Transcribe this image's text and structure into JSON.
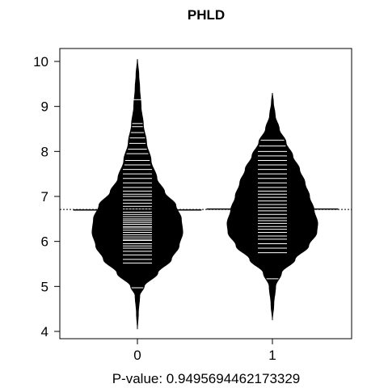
{
  "chart_data": {
    "type": "beanplot",
    "title": "PHLD",
    "xlabel": "P-value: 0.9495694462173329",
    "ylabel": "",
    "categories": [
      "0",
      "1"
    ],
    "ylim": [
      3.9,
      10.2
    ],
    "yticks": [
      4,
      5,
      6,
      7,
      8,
      9,
      10
    ],
    "overall_mean_line": 6.71,
    "series": [
      {
        "category": "0",
        "group_mean": 6.7,
        "range": [
          4.05,
          10.05
        ],
        "density_profile": [
          [
            4.05,
            0.0
          ],
          [
            4.4,
            0.02
          ],
          [
            4.8,
            0.05
          ],
          [
            5.0,
            0.15
          ],
          [
            5.3,
            0.45
          ],
          [
            5.6,
            0.75
          ],
          [
            5.9,
            0.92
          ],
          [
            6.2,
            1.0
          ],
          [
            6.5,
            0.97
          ],
          [
            6.8,
            0.85
          ],
          [
            7.1,
            0.6
          ],
          [
            7.4,
            0.43
          ],
          [
            7.8,
            0.3
          ],
          [
            8.2,
            0.2
          ],
          [
            8.6,
            0.13
          ],
          [
            9.0,
            0.08
          ],
          [
            9.4,
            0.05
          ],
          [
            9.7,
            0.03
          ],
          [
            10.05,
            0.0
          ]
        ],
        "observations": [
          4.97,
          5.52,
          5.6,
          5.7,
          5.78,
          5.85,
          5.9,
          5.95,
          6.02,
          6.05,
          6.1,
          6.15,
          6.2,
          6.25,
          6.3,
          6.33,
          6.38,
          6.42,
          6.46,
          6.5,
          6.55,
          6.6,
          6.65,
          6.72,
          6.78,
          6.85,
          6.92,
          7.0,
          7.05,
          7.12,
          7.2,
          7.3,
          7.4,
          7.5,
          7.6,
          7.7,
          7.8,
          7.95,
          8.05,
          8.18,
          8.3,
          8.42,
          8.55,
          8.62,
          9.15
        ]
      },
      {
        "category": "1",
        "group_mean": 6.72,
        "range": [
          4.25,
          9.3
        ],
        "density_profile": [
          [
            4.25,
            0.0
          ],
          [
            4.6,
            0.03
          ],
          [
            5.0,
            0.07
          ],
          [
            5.3,
            0.2
          ],
          [
            5.6,
            0.5
          ],
          [
            5.9,
            0.8
          ],
          [
            6.2,
            0.98
          ],
          [
            6.4,
            1.0
          ],
          [
            6.7,
            0.92
          ],
          [
            7.0,
            0.82
          ],
          [
            7.3,
            0.72
          ],
          [
            7.6,
            0.6
          ],
          [
            7.9,
            0.45
          ],
          [
            8.2,
            0.3
          ],
          [
            8.5,
            0.15
          ],
          [
            8.8,
            0.06
          ],
          [
            9.1,
            0.02
          ],
          [
            9.3,
            0.0
          ]
        ],
        "observations": [
          5.17,
          5.75,
          5.85,
          5.95,
          6.05,
          6.12,
          6.2,
          6.27,
          6.33,
          6.4,
          6.46,
          6.52,
          6.6,
          6.68,
          6.75,
          6.82,
          6.9,
          6.98,
          7.05,
          7.12,
          7.2,
          7.3,
          7.4,
          7.5,
          7.6,
          7.7,
          7.8,
          7.9,
          8.0,
          8.12,
          8.25
        ]
      }
    ],
    "colors": {
      "bean": "#000000",
      "line": "#ffffff",
      "mean": "#000000"
    }
  }
}
